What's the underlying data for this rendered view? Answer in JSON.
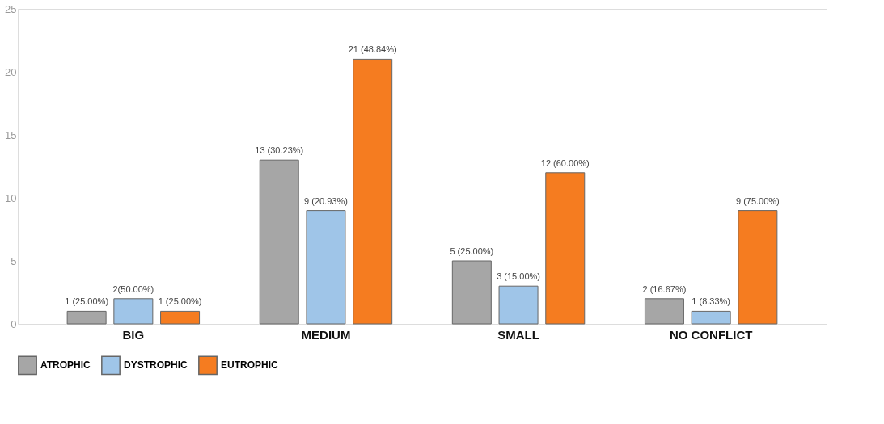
{
  "chart_data": {
    "type": "bar",
    "categories": [
      "BIG",
      "MEDIUM",
      "SMALL",
      "NO CONFLICT"
    ],
    "series": [
      {
        "name": "ATROPHIC",
        "color": "#a6a6a6",
        "values": [
          1,
          13,
          5,
          2
        ],
        "value_labels": [
          "1 (25.00%)",
          "13 (30.23%)",
          "5 (25.00%)",
          "2 (16.67%)"
        ]
      },
      {
        "name": "DYSTROPHIC",
        "color": "#9fc5e8",
        "values": [
          2,
          9,
          3,
          1
        ],
        "value_labels": [
          "2(50.00%)",
          "9 (20.93%)",
          "3 (15.00%)",
          "1 (8.33%)"
        ]
      },
      {
        "name": "EUTROPHIC",
        "color": "#f57c20",
        "values": [
          1,
          21,
          12,
          9
        ],
        "value_labels": [
          "1 (25.00%)",
          "21 (48.84%)",
          "12 (60.00%)",
          "9 (75.00%)"
        ]
      }
    ],
    "ylim": [
      0,
      25
    ],
    "yticks": [
      0,
      5,
      10,
      15,
      20,
      25
    ],
    "grid": false,
    "legend": "bottom"
  }
}
